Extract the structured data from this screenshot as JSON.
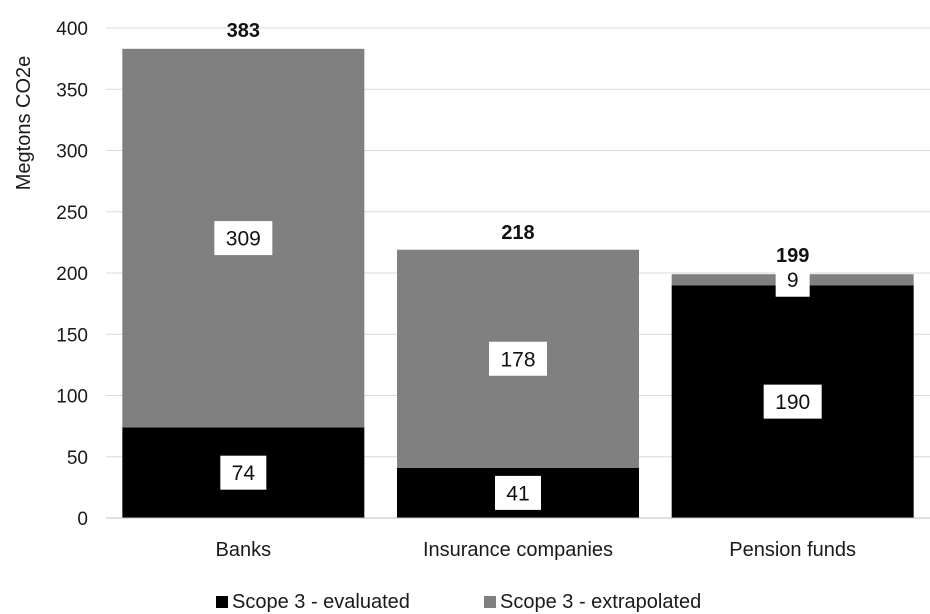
{
  "chart_data": {
    "type": "bar",
    "stacked": true,
    "title": "",
    "xlabel": "",
    "ylabel": "Megtons CO2e",
    "ylim": [
      0,
      400
    ],
    "yticks": [
      0,
      50,
      100,
      150,
      200,
      250,
      300,
      350,
      400
    ],
    "grid": true,
    "legend": "bottom",
    "categories": [
      "Banks",
      "Insurance companies",
      "Pension funds"
    ],
    "series": [
      {
        "name": "Scope 3 - evaluated",
        "color": "#000000",
        "values": [
          74,
          41,
          190
        ]
      },
      {
        "name": "Scope 3 - extrapolated",
        "color": "#808080",
        "values": [
          309,
          178,
          9
        ]
      }
    ],
    "totals": [
      383,
      218,
      199
    ]
  }
}
